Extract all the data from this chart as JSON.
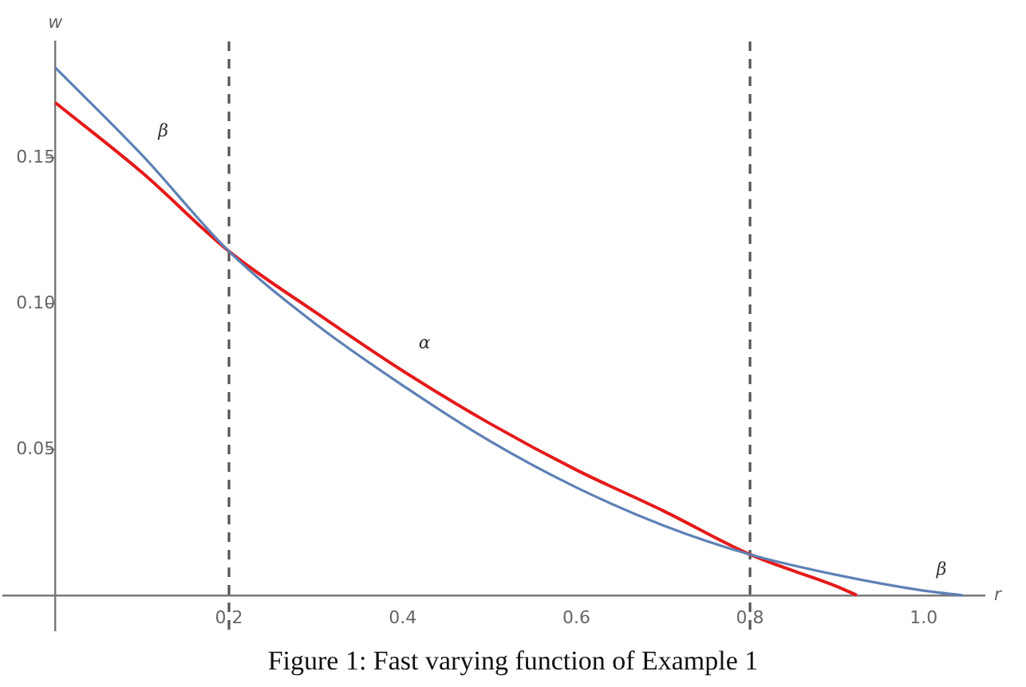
{
  "chart_data": {
    "type": "line",
    "xlabel": "r",
    "ylabel": "w",
    "series": [
      {
        "name": "β",
        "color": "#5e81b5",
        "x": [
          0,
          0.1,
          0.2,
          0.3,
          0.4,
          0.5,
          0.6,
          0.7,
          0.8,
          0.9,
          1.0,
          1.045
        ],
        "values": [
          0.181,
          0.151,
          0.118,
          0.093,
          0.072,
          0.053,
          0.037,
          0.024,
          0.014,
          0.007,
          0.0016,
          0
        ]
      },
      {
        "name": "α",
        "color": "#e51a1a",
        "x": [
          0,
          0.1,
          0.2,
          0.3,
          0.4,
          0.5,
          0.6,
          0.7,
          0.8,
          0.9,
          0.923
        ],
        "values": [
          0.169,
          0.145,
          0.118,
          0.097,
          0.077,
          0.059,
          0.043,
          0.029,
          0.014,
          0.003,
          0
        ]
      }
    ],
    "xlim": [
      -0.06,
      1.07
    ],
    "ylim": [
      -0.012,
      0.19
    ],
    "xticks": [
      0.2,
      0.4,
      0.6,
      0.8,
      {
        "value": 1.0,
        "label": "1.0"
      }
    ],
    "yticks": [
      0.05,
      {
        "value": 0.1,
        "label": "0.10"
      },
      0.15
    ],
    "ref_lines": [
      {
        "axis": "x",
        "value": 0.2,
        "color": "#555555",
        "line_style": "dashed"
      },
      {
        "axis": "x",
        "value": 0.8,
        "color": "#555555",
        "line_style": "dashed"
      }
    ],
    "grid": false,
    "legend": false,
    "marker": "none",
    "line_style": "solid",
    "annotations": [
      "Figure 1: Fast varying function of Example 1"
    ]
  }
}
